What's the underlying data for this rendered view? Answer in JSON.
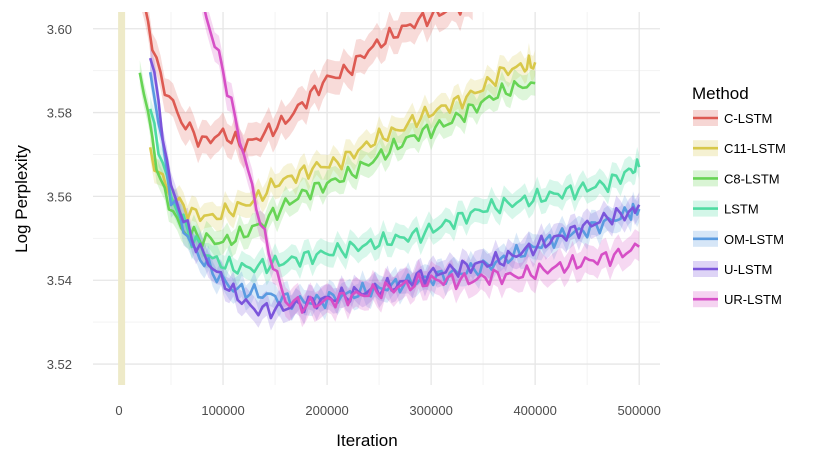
{
  "chart_data": {
    "type": "line",
    "xlabel": "Iteration",
    "ylabel": "Log Perplexity",
    "xlim": [
      -25000,
      520000
    ],
    "ylim": [
      3.515,
      3.604
    ],
    "x_ticks": [
      0,
      100000,
      200000,
      300000,
      400000,
      500000
    ],
    "x_tick_labels": [
      "0",
      "100000",
      "200000",
      "300000",
      "400000",
      "500000"
    ],
    "y_ticks": [
      3.52,
      3.54,
      3.56,
      3.58,
      3.6
    ],
    "y_tick_labels": [
      "3.52",
      "3.54",
      "3.56",
      "3.58",
      "3.60"
    ],
    "grid": true,
    "legend": {
      "title": "Method",
      "position": "right"
    },
    "vline": {
      "x": 2500,
      "color": "#eeeac8"
    },
    "series": [
      {
        "name": "C-LSTM",
        "color": "#dd5a52",
        "x": [
          20000,
          40000,
          60000,
          80000,
          100000,
          120000,
          140000,
          160000,
          180000,
          200000,
          220000,
          240000,
          260000,
          280000,
          300000,
          320000,
          340000
        ],
        "y": [
          3.61,
          3.588,
          3.578,
          3.573,
          3.575,
          3.572,
          3.575,
          3.578,
          3.583,
          3.588,
          3.59,
          3.595,
          3.598,
          3.601,
          3.603,
          3.605,
          3.606
        ],
        "band": 0.004
      },
      {
        "name": "C11-LSTM",
        "color": "#d8c84a",
        "x": [
          30000,
          50000,
          70000,
          90000,
          110000,
          130000,
          150000,
          170000,
          190000,
          210000,
          230000,
          250000,
          270000,
          290000,
          310000,
          330000,
          350000,
          370000,
          390000,
          400000
        ],
        "y": [
          3.57,
          3.56,
          3.556,
          3.555,
          3.557,
          3.559,
          3.563,
          3.565,
          3.567,
          3.568,
          3.571,
          3.574,
          3.576,
          3.579,
          3.581,
          3.583,
          3.586,
          3.59,
          3.591,
          3.592
        ],
        "band": 0.003
      },
      {
        "name": "C8-LSTM",
        "color": "#67d455",
        "x": [
          20000,
          40000,
          60000,
          80000,
          100000,
          120000,
          140000,
          160000,
          180000,
          200000,
          220000,
          240000,
          260000,
          280000,
          300000,
          320000,
          340000,
          360000,
          380000,
          400000
        ],
        "y": [
          3.59,
          3.563,
          3.552,
          3.55,
          3.549,
          3.551,
          3.554,
          3.558,
          3.561,
          3.563,
          3.565,
          3.568,
          3.571,
          3.574,
          3.576,
          3.578,
          3.581,
          3.584,
          3.586,
          3.587
        ],
        "band": 0.003
      },
      {
        "name": "LSTM",
        "color": "#4fdba2",
        "x": [
          30000,
          50000,
          70000,
          90000,
          110000,
          130000,
          150000,
          170000,
          190000,
          210000,
          230000,
          250000,
          270000,
          290000,
          310000,
          330000,
          350000,
          370000,
          390000,
          410000,
          430000,
          450000,
          470000,
          490000,
          500000
        ],
        "y": [
          3.58,
          3.56,
          3.55,
          3.545,
          3.543,
          3.543,
          3.544,
          3.545,
          3.546,
          3.547,
          3.548,
          3.549,
          3.55,
          3.551,
          3.553,
          3.555,
          3.557,
          3.558,
          3.559,
          3.56,
          3.561,
          3.562,
          3.563,
          3.566,
          3.567
        ],
        "band": 0.003
      },
      {
        "name": "OM-LSTM",
        "color": "#5a9be0",
        "x": [
          30000,
          50000,
          70000,
          90000,
          110000,
          130000,
          150000,
          170000,
          190000,
          210000,
          230000,
          250000,
          270000,
          290000,
          310000,
          330000,
          350000,
          370000,
          390000,
          410000,
          430000,
          450000,
          470000,
          490000,
          500000
        ],
        "y": [
          3.59,
          3.56,
          3.548,
          3.542,
          3.538,
          3.537,
          3.536,
          3.535,
          3.535,
          3.536,
          3.537,
          3.538,
          3.539,
          3.54,
          3.541,
          3.542,
          3.543,
          3.545,
          3.547,
          3.549,
          3.551,
          3.552,
          3.554,
          3.556,
          3.557
        ],
        "band": 0.003
      },
      {
        "name": "U-LSTM",
        "color": "#7b55db",
        "x": [
          30000,
          50000,
          70000,
          90000,
          110000,
          130000,
          150000,
          170000,
          190000,
          210000,
          230000,
          250000,
          270000,
          290000,
          310000,
          330000,
          350000,
          370000,
          390000,
          410000,
          430000,
          450000,
          470000,
          490000,
          500000
        ],
        "y": [
          3.595,
          3.562,
          3.55,
          3.543,
          3.537,
          3.533,
          3.533,
          3.534,
          3.535,
          3.536,
          3.537,
          3.538,
          3.539,
          3.541,
          3.542,
          3.543,
          3.544,
          3.545,
          3.547,
          3.549,
          3.551,
          3.553,
          3.555,
          3.556,
          3.558
        ],
        "band": 0.003
      },
      {
        "name": "UR-LSTM",
        "color": "#d64fc6",
        "x": [
          80000,
          100000,
          120000,
          140000,
          160000,
          180000,
          200000,
          220000,
          240000,
          260000,
          280000,
          300000,
          320000,
          340000,
          360000,
          380000,
          400000,
          420000,
          440000,
          460000,
          480000,
          500000
        ],
        "y": [
          3.606,
          3.59,
          3.57,
          3.55,
          3.535,
          3.534,
          3.535,
          3.536,
          3.537,
          3.538,
          3.539,
          3.54,
          3.54,
          3.54,
          3.541,
          3.541,
          3.542,
          3.543,
          3.544,
          3.545,
          3.546,
          3.548
        ],
        "band": 0.0035
      }
    ]
  }
}
